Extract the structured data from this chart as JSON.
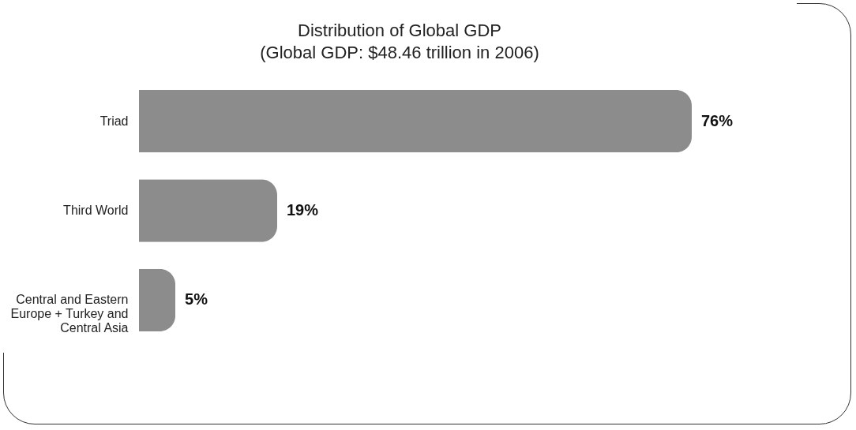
{
  "chart_data": {
    "type": "bar",
    "orientation": "horizontal",
    "title": "Distribution of Global GDP",
    "subtitle": "(Global GDP: $48.46 trillion in 2006)",
    "categories": [
      "Triad",
      "Third World",
      "Central and Eastern Europe + Turkey and Central Asia"
    ],
    "values": [
      76,
      19,
      5
    ],
    "value_labels": [
      "76%",
      "19%",
      "5%"
    ],
    "color": "#8c8c8c"
  }
}
